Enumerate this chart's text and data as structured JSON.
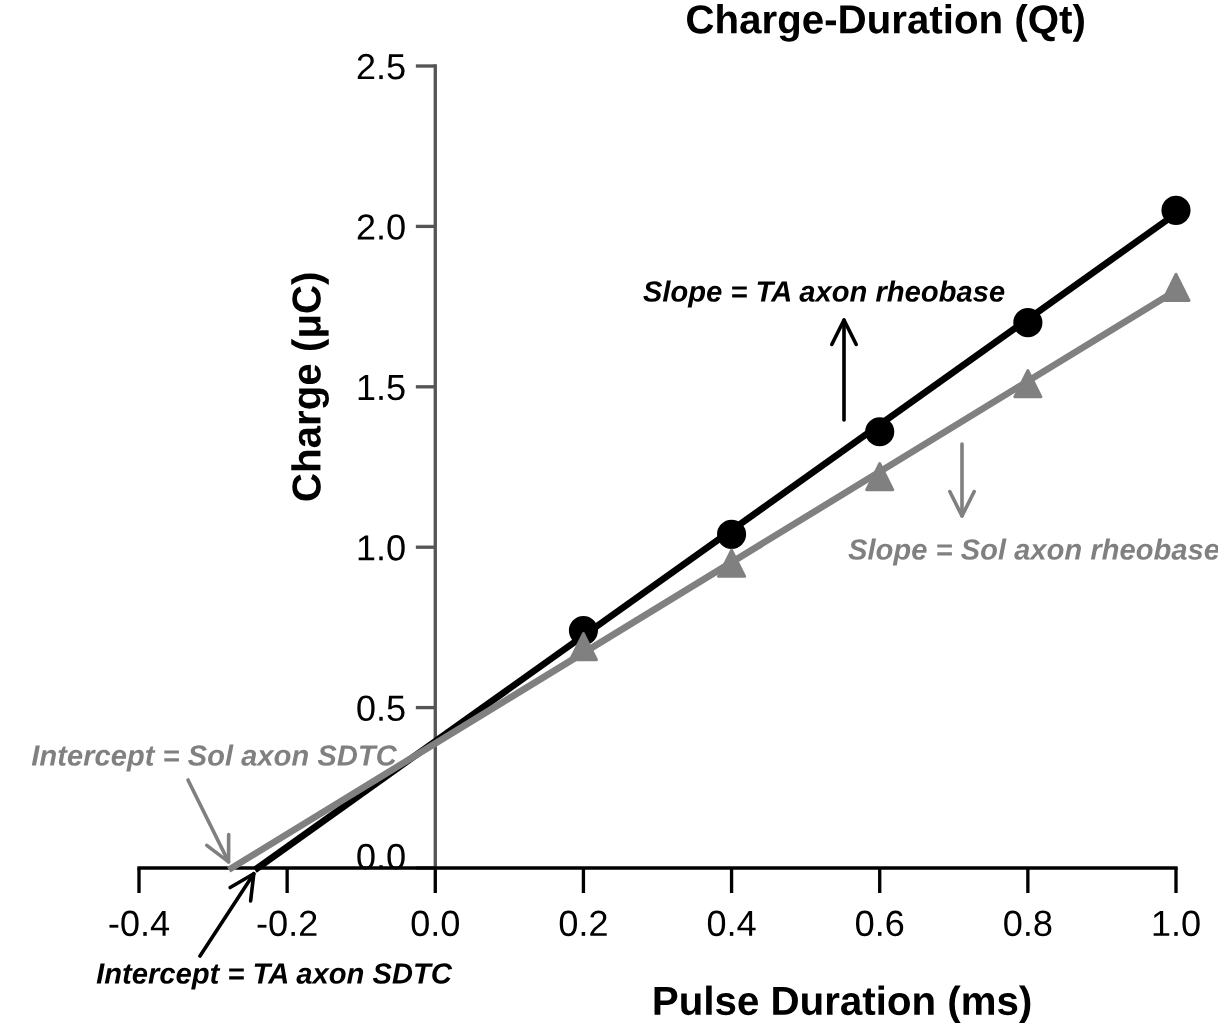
{
  "chart_data": {
    "type": "scatter",
    "title": "Charge-Duration (Qt)",
    "xlabel": "Pulse Duration (ms)",
    "ylabel": "Charge (μC)",
    "xlim": [
      -0.4,
      1.0
    ],
    "xticks": [
      {
        "value": -0.4,
        "label": "-0.4"
      },
      {
        "value": -0.2,
        "label": "-0.2"
      },
      {
        "value": 0,
        "label": "0.0"
      },
      {
        "value": 0.2,
        "label": "0.2"
      },
      {
        "value": 0.4,
        "label": "0.4"
      },
      {
        "value": 0.6,
        "label": "0.6"
      },
      {
        "value": 0.8,
        "label": "0.8"
      },
      {
        "value": 1.0,
        "label": "1.0"
      }
    ],
    "ylim": [
      0,
      2.5
    ],
    "yticks": [
      {
        "value": 0,
        "label": "0.0"
      },
      {
        "value": 0.5,
        "label": "0.5"
      },
      {
        "value": 1.0,
        "label": "1.0"
      },
      {
        "value": 1.5,
        "label": "1.5"
      },
      {
        "value": 2.0,
        "label": "2.0"
      },
      {
        "value": 2.5,
        "label": "2.5"
      }
    ],
    "series": [
      {
        "color": "#000000",
        "marker": "circle",
        "x": [
          0.2,
          0.4,
          0.6,
          0.8,
          1.0
        ],
        "values": [
          0.74,
          1.04,
          1.36,
          1.7,
          2.05
        ]
      },
      {
        "color": "#808080",
        "marker": "triangle",
        "x": [
          0.2,
          0.4,
          0.6,
          0.8,
          1.0
        ],
        "values": [
          0.69,
          0.95,
          1.22,
          1.51,
          1.81
        ]
      },
      {
        "type": "line",
        "color": "#000000",
        "x": [
          -0.24,
          1.0
        ],
        "values": [
          0,
          2.04
        ]
      },
      {
        "type": "line",
        "color": "#808080",
        "x": [
          -0.275,
          1.0
        ],
        "values": [
          0,
          1.8
        ]
      }
    ],
    "annotations": [
      "Slope = TA axon rheobase",
      "Slope = Sol axon rheobase",
      {
        "text": "Intercept = Sol axon SDTC",
        "x": -0.275,
        "y": 0
      },
      {
        "text": "Intercept = TA axon SDTC",
        "x": -0.24,
        "y": 0
      }
    ]
  }
}
